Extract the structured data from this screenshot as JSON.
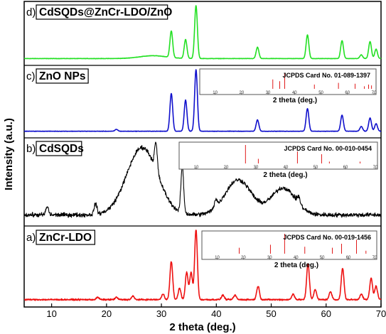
{
  "chart_data": {
    "type": "line",
    "xlabel": "2 theta (deg.)",
    "ylabel": "Intensity (a.u.)",
    "xlim": [
      5,
      70
    ],
    "x_ticks": [
      10,
      20,
      30,
      40,
      50,
      60,
      70
    ],
    "grid": false,
    "legend": "none",
    "panels": [
      {
        "letter": "d)",
        "name": "CdSQDs@ZnCr-LDO/ZnO",
        "color": "#22e022",
        "noise": 0.2,
        "baseline": 1.2,
        "humps": [
          {
            "c": 28.5,
            "w": 2.5,
            "h": 3.0
          }
        ],
        "peaks": [
          [
            31.8,
            28
          ],
          [
            34.4,
            20
          ],
          [
            36.3,
            56
          ],
          [
            47.5,
            12
          ],
          [
            56.6,
            25
          ],
          [
            62.9,
            19
          ],
          [
            66.4,
            4
          ],
          [
            68.0,
            18
          ],
          [
            69.1,
            10
          ]
        ]
      },
      {
        "letter": "c)",
        "name": "ZnO NPs",
        "color": "#1010cc",
        "noise": 0.2,
        "baseline": 1.0,
        "humps": [],
        "peaks": [
          [
            21.8,
            2
          ],
          [
            31.8,
            40
          ],
          [
            34.4,
            33
          ],
          [
            36.3,
            65
          ],
          [
            47.5,
            12
          ],
          [
            56.6,
            24
          ],
          [
            62.9,
            17
          ],
          [
            66.4,
            5
          ],
          [
            68.0,
            14
          ],
          [
            69.1,
            8
          ]
        ],
        "reference": {
          "label": "JCPDS Card No. 01-089-1397",
          "xlabel": "2 theta (deg.)",
          "ticks": [
            10,
            20,
            30,
            40,
            50,
            60,
            70
          ],
          "lines": [
            [
              31.8,
              0.55
            ],
            [
              34.4,
              0.45
            ],
            [
              36.3,
              0.9
            ],
            [
              47.5,
              0.25
            ],
            [
              56.6,
              0.35
            ],
            [
              62.9,
              0.3
            ],
            [
              66.4,
              0.15
            ],
            [
              68.0,
              0.25
            ],
            [
              69.1,
              0.2
            ]
          ]
        }
      },
      {
        "letter": "b)",
        "name": "CdSQDs",
        "color": "#000000",
        "noise": 1.6,
        "baseline": 4.0,
        "humps": [
          {
            "c": 26.5,
            "w": 2.8,
            "h": 50
          },
          {
            "c": 44.0,
            "w": 2.4,
            "h": 26
          },
          {
            "c": 52.2,
            "w": 2.2,
            "h": 20
          }
        ],
        "peaks": [
          [
            9.2,
            6
          ],
          [
            18.0,
            8
          ],
          [
            29.0,
            20
          ],
          [
            33.8,
            34
          ],
          [
            39.9,
            6
          ],
          [
            55.0,
            5
          ]
        ],
        "reference": {
          "label": "JCPDS Card No. 00-010-0454",
          "xlabel": "2 theta (deg.)",
          "ticks": [
            10,
            20,
            30,
            40,
            50,
            60,
            70
          ],
          "lines": [
            [
              26.5,
              1.0
            ],
            [
              30.8,
              0.25
            ],
            [
              43.9,
              0.65
            ],
            [
              52.0,
              0.5
            ],
            [
              54.6,
              0.1
            ],
            [
              64.9,
              0.1
            ]
          ]
        }
      },
      {
        "letter": "a)",
        "name": "ZnCr-LDO",
        "color": "#ee1111",
        "noise": 0.6,
        "baseline": 1.5,
        "humps": [],
        "peaks": [
          [
            18.4,
            2
          ],
          [
            21.8,
            2
          ],
          [
            24.8,
            3
          ],
          [
            30.3,
            5
          ],
          [
            31.8,
            34
          ],
          [
            33.3,
            10
          ],
          [
            34.6,
            24
          ],
          [
            35.4,
            24
          ],
          [
            36.3,
            62
          ],
          [
            41.2,
            4
          ],
          [
            43.4,
            4
          ],
          [
            47.6,
            12
          ],
          [
            54.0,
            5
          ],
          [
            56.7,
            32
          ],
          [
            58.0,
            9
          ],
          [
            60.8,
            7
          ],
          [
            63.0,
            28
          ],
          [
            66.4,
            5
          ],
          [
            68.2,
            19
          ],
          [
            69.1,
            12
          ]
        ],
        "reference": {
          "label": "JCPDS Card No. 00-019-1456",
          "xlabel": "2 theta (deg.)",
          "ticks": [
            10,
            20,
            30,
            40,
            50,
            60,
            70
          ],
          "lines": [
            [
              18.4,
              0.3
            ],
            [
              30.3,
              0.45
            ],
            [
              35.7,
              1.0
            ],
            [
              43.4,
              0.35
            ],
            [
              53.9,
              0.3
            ],
            [
              57.4,
              0.5
            ],
            [
              63.1,
              0.7
            ],
            [
              66.7,
              0.15
            ]
          ]
        }
      }
    ]
  }
}
